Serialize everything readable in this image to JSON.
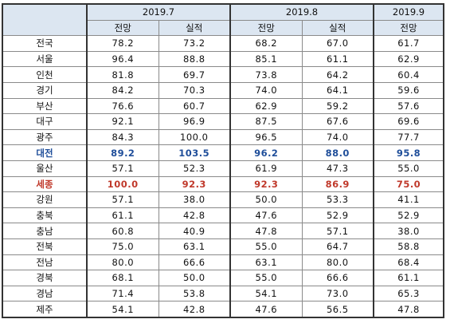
{
  "header": {
    "months": [
      {
        "label": "2019.7",
        "span": 2
      },
      {
        "label": "2019.8",
        "span": 2
      },
      {
        "label": "2019.9",
        "span": 1
      }
    ],
    "subheaders": [
      "전망",
      "실적",
      "전망",
      "실적",
      "전망"
    ]
  },
  "rows": [
    {
      "region": "전국",
      "values": [
        "78.2",
        "73.2",
        "68.2",
        "67.0",
        "61.7"
      ],
      "style": ""
    },
    {
      "region": "서울",
      "values": [
        "96.4",
        "88.8",
        "85.1",
        "61.1",
        "62.9"
      ],
      "style": ""
    },
    {
      "region": "인천",
      "values": [
        "81.8",
        "69.7",
        "73.8",
        "64.2",
        "60.4"
      ],
      "style": ""
    },
    {
      "region": "경기",
      "values": [
        "84.2",
        "70.3",
        "74.0",
        "64.1",
        "59.6"
      ],
      "style": ""
    },
    {
      "region": "부산",
      "values": [
        "76.6",
        "60.7",
        "62.9",
        "59.2",
        "57.6"
      ],
      "style": ""
    },
    {
      "region": "대구",
      "values": [
        "92.1",
        "96.9",
        "87.5",
        "67.6",
        "69.6"
      ],
      "style": ""
    },
    {
      "region": "광주",
      "values": [
        "84.3",
        "100.0",
        "96.5",
        "74.0",
        "77.7"
      ],
      "style": ""
    },
    {
      "region": "대전",
      "values": [
        "89.2",
        "103.5",
        "96.2",
        "88.0",
        "95.8"
      ],
      "style": "hl-blue"
    },
    {
      "region": "울산",
      "values": [
        "57.1",
        "52.3",
        "61.9",
        "47.3",
        "55.0"
      ],
      "style": ""
    },
    {
      "region": "세종",
      "values": [
        "100.0",
        "92.3",
        "92.3",
        "86.9",
        "75.0"
      ],
      "style": "hl-red"
    },
    {
      "region": "강원",
      "values": [
        "57.1",
        "38.0",
        "50.0",
        "53.3",
        "41.1"
      ],
      "style": ""
    },
    {
      "region": "충북",
      "values": [
        "61.1",
        "42.8",
        "47.6",
        "52.9",
        "52.9"
      ],
      "style": ""
    },
    {
      "region": "충남",
      "values": [
        "60.8",
        "40.9",
        "47.8",
        "57.1",
        "38.0"
      ],
      "style": ""
    },
    {
      "region": "전북",
      "values": [
        "75.0",
        "63.1",
        "55.0",
        "64.7",
        "58.8"
      ],
      "style": ""
    },
    {
      "region": "전남",
      "values": [
        "80.0",
        "66.6",
        "63.1",
        "80.0",
        "68.4"
      ],
      "style": ""
    },
    {
      "region": "경북",
      "values": [
        "68.1",
        "50.0",
        "55.0",
        "66.6",
        "61.1"
      ],
      "style": ""
    },
    {
      "region": "경남",
      "values": [
        "71.4",
        "53.8",
        "54.1",
        "73.0",
        "65.3"
      ],
      "style": ""
    },
    {
      "region": "제주",
      "values": [
        "54.1",
        "42.8",
        "47.6",
        "56.5",
        "47.8"
      ],
      "style": ""
    }
  ],
  "colors": {
    "header_bg": "#dce6f1",
    "highlight_blue": "#1f4e9a",
    "highlight_red": "#c0392b"
  }
}
